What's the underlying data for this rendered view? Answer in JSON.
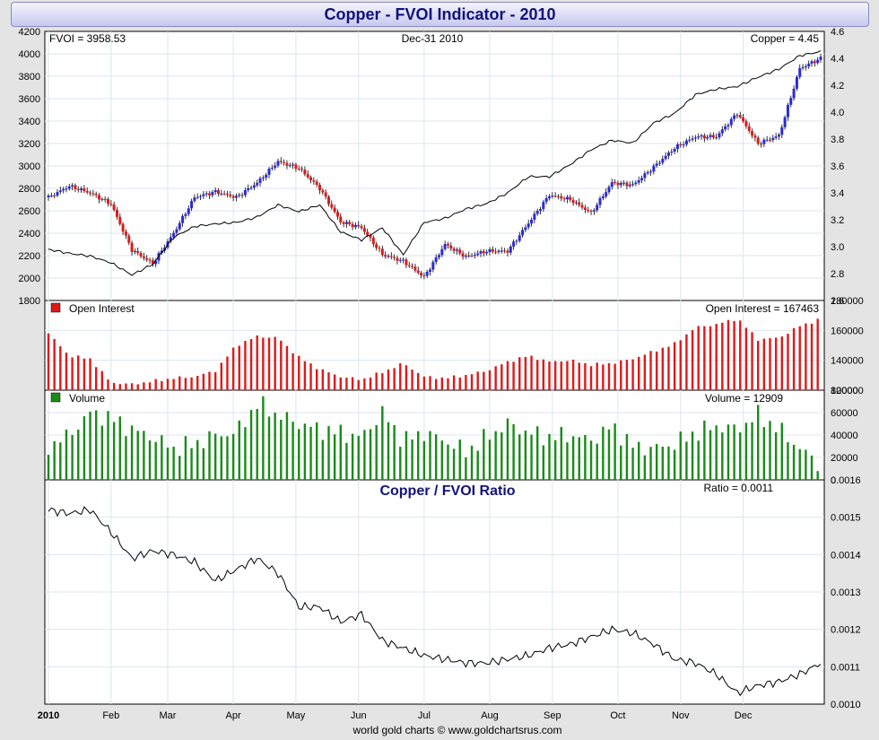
{
  "title": "Copper - FVOI Indicator - 2010",
  "footer": "world gold charts © www.goldchartsrus.com",
  "chart_data": [
    {
      "type": "line",
      "panel": "price",
      "header_left": "FVOI = 3958.53",
      "header_center": "Dec-31  2010",
      "header_right": "Copper = 4.45",
      "x_ticks": [
        "2010",
        "Feb",
        "Mar",
        "Apr",
        "May",
        "Jun",
        "Jul",
        "Aug",
        "Sep",
        "Oct",
        "Nov",
        "Dec"
      ],
      "left_axis": {
        "ylim": [
          1800,
          4200
        ],
        "ticks": [
          "4200",
          "4000",
          "3800",
          "3600",
          "3400",
          "3200",
          "3000",
          "2800",
          "2600",
          "2400",
          "2200",
          "2000",
          "1800"
        ]
      },
      "right_axis": {
        "ylim": [
          2.6,
          4.6
        ],
        "ticks": [
          "4.6",
          "4.4",
          "4.2",
          "4.0",
          "3.8",
          "3.6",
          "3.4",
          "3.2",
          "3.0",
          "2.8",
          "2.6"
        ]
      },
      "colors": {
        "up": "#2a2ad8",
        "down": "#dd1a1a",
        "line": "#000000"
      },
      "series": [
        {
          "name": "FVOI",
          "axis": "left",
          "style": "candlestick",
          "x": [
            0,
            7,
            14,
            21,
            28,
            35,
            42,
            49,
            56,
            63,
            70,
            77,
            84,
            91,
            98,
            105,
            112,
            119,
            126,
            133,
            140,
            147,
            154,
            161,
            168,
            175,
            182,
            189,
            196,
            203,
            210,
            217,
            224,
            231,
            238,
            245,
            252,
            259
          ],
          "values": [
            2720,
            2820,
            2760,
            2660,
            2250,
            2130,
            2400,
            2720,
            2770,
            2720,
            2850,
            3040,
            2980,
            2800,
            2500,
            2450,
            2210,
            2150,
            2010,
            2300,
            2190,
            2240,
            2240,
            2490,
            2740,
            2700,
            2580,
            2850,
            2830,
            2990,
            3160,
            3260,
            3260,
            3470,
            3200,
            3270,
            3870,
            3960
          ]
        },
        {
          "name": "Copper",
          "axis": "right",
          "style": "line",
          "x": [
            0,
            7,
            14,
            21,
            28,
            35,
            42,
            49,
            56,
            63,
            70,
            77,
            84,
            91,
            98,
            105,
            112,
            119,
            126,
            133,
            140,
            147,
            154,
            161,
            168,
            175,
            182,
            189,
            196,
            203,
            210,
            217,
            224,
            231,
            238,
            245,
            252,
            259
          ],
          "values": [
            2.98,
            2.95,
            2.93,
            2.88,
            2.79,
            2.87,
            3.07,
            3.15,
            3.17,
            3.18,
            3.22,
            3.31,
            3.26,
            3.31,
            3.11,
            3.05,
            3.14,
            2.94,
            3.18,
            3.21,
            3.28,
            3.32,
            3.4,
            3.52,
            3.52,
            3.61,
            3.72,
            3.79,
            3.77,
            3.92,
            3.99,
            4.13,
            4.17,
            4.19,
            4.26,
            4.32,
            4.42,
            4.45
          ]
        }
      ]
    },
    {
      "type": "bar",
      "panel": "open_interest",
      "legend": "Open Interest",
      "header_right": "Open Interest = 167463",
      "ylim": [
        120000,
        180000
      ],
      "ticks": [
        "180000",
        "160000",
        "140000",
        "120000"
      ],
      "color": "#dd1a1a",
      "x": [
        0,
        7,
        14,
        21,
        28,
        35,
        42,
        49,
        56,
        63,
        70,
        77,
        84,
        91,
        98,
        105,
        112,
        119,
        126,
        133,
        140,
        147,
        154,
        161,
        168,
        175,
        182,
        189,
        196,
        203,
        210,
        217,
        224,
        231,
        238,
        245,
        252,
        259
      ],
      "values": [
        158000,
        143000,
        141000,
        125000,
        124000,
        126000,
        128000,
        129000,
        133000,
        150000,
        156000,
        155000,
        142000,
        134000,
        129000,
        127000,
        132000,
        138000,
        129000,
        128000,
        130000,
        133000,
        139000,
        143000,
        139000,
        140000,
        137000,
        138000,
        141000,
        146000,
        151000,
        162000,
        164000,
        168000,
        154000,
        155000,
        163000,
        167463
      ]
    },
    {
      "type": "bar",
      "panel": "volume",
      "legend": "Volume",
      "header_right": "Volume = 12909",
      "ylim": [
        0,
        80000
      ],
      "ticks": [
        "80000",
        "60000",
        "40000",
        "20000",
        "0"
      ],
      "color": "#1a8a1a",
      "x": [
        0,
        7,
        14,
        21,
        28,
        35,
        42,
        49,
        56,
        63,
        70,
        77,
        84,
        91,
        98,
        105,
        112,
        119,
        126,
        133,
        140,
        147,
        154,
        161,
        168,
        175,
        182,
        189,
        196,
        203,
        210,
        217,
        224,
        231,
        238,
        245,
        252,
        259
      ],
      "values": [
        30000,
        40000,
        60000,
        55000,
        45000,
        38000,
        28000,
        32000,
        40000,
        42000,
        68000,
        58000,
        50000,
        45000,
        42000,
        38000,
        60000,
        35000,
        42000,
        35000,
        25000,
        38000,
        50000,
        42000,
        38000,
        40000,
        35000,
        48000,
        30000,
        28000,
        32000,
        42000,
        48000,
        45000,
        58000,
        45000,
        28000,
        12909
      ]
    },
    {
      "type": "line",
      "panel": "ratio",
      "title": "Copper / FVOI Ratio",
      "header_right": "Ratio = 0.0011",
      "ylim": [
        0.001,
        0.0016
      ],
      "ticks": [
        "0.0016",
        "0.0015",
        "0.0014",
        "0.0013",
        "0.0012",
        "0.0011",
        "0.0010"
      ],
      "x": [
        0,
        7,
        14,
        21,
        28,
        35,
        42,
        49,
        56,
        63,
        70,
        77,
        84,
        91,
        98,
        105,
        112,
        119,
        126,
        133,
        140,
        147,
        154,
        161,
        168,
        175,
        182,
        189,
        196,
        203,
        210,
        217,
        224,
        231,
        238,
        245,
        252,
        259
      ],
      "values": [
        0.00152,
        0.00151,
        0.00152,
        0.00146,
        0.00139,
        0.00141,
        0.0014,
        0.00138,
        0.00133,
        0.00136,
        0.00139,
        0.00135,
        0.00126,
        0.00126,
        0.00122,
        0.00124,
        0.00117,
        0.00115,
        0.00113,
        0.00112,
        0.00111,
        0.00111,
        0.00112,
        0.00113,
        0.00115,
        0.00116,
        0.00118,
        0.0012,
        0.00119,
        0.00116,
        0.00112,
        0.00111,
        0.00108,
        0.00103,
        0.00105,
        0.00106,
        0.00108,
        0.00111
      ]
    }
  ]
}
